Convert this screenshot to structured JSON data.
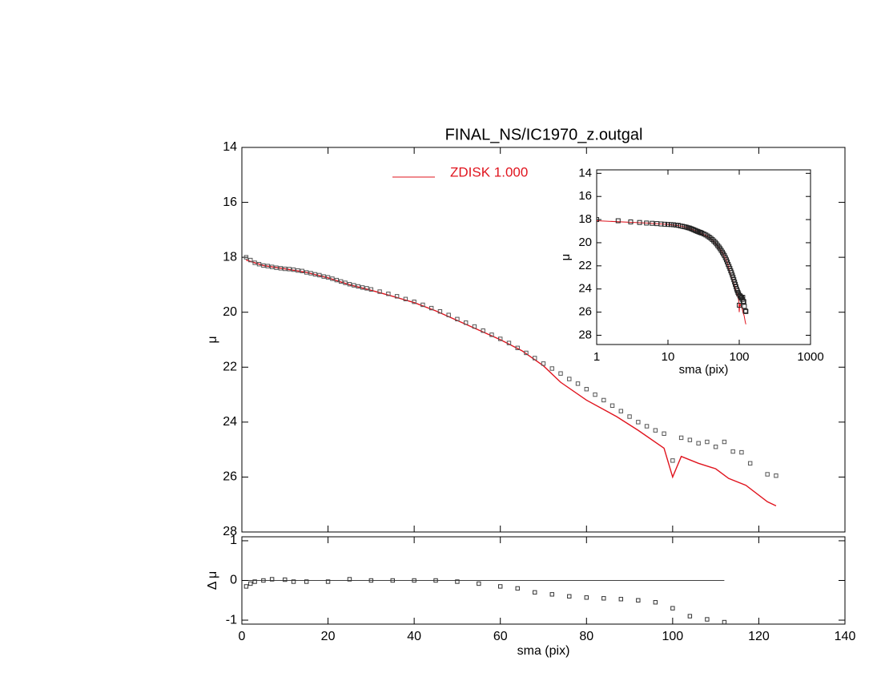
{
  "chart_data": [
    {
      "type": "line",
      "title": "FINAL_NS/IC1970_z.outgal",
      "ylabel": "μ",
      "xlim": [
        0,
        140
      ],
      "xticks": [
        0,
        20,
        40,
        60,
        80,
        100,
        120,
        140
      ],
      "ylim": [
        28,
        14
      ],
      "yticks": [
        14,
        16,
        18,
        20,
        22,
        24,
        26,
        28
      ],
      "series": [
        {
          "name": "ZDISK  1.000",
          "color": "#e0141e",
          "mode": "line",
          "x": [
            1,
            5,
            10,
            15,
            20,
            25,
            30,
            35,
            40,
            45,
            50,
            55,
            60,
            65,
            70,
            74,
            80,
            87,
            92,
            98,
            100,
            102,
            106,
            110,
            113,
            117,
            122,
            124
          ],
          "values": [
            18.1,
            18.3,
            18.42,
            18.55,
            18.75,
            19.0,
            19.2,
            19.42,
            19.65,
            19.95,
            20.3,
            20.65,
            21.0,
            21.4,
            21.95,
            22.55,
            23.2,
            23.8,
            24.3,
            24.95,
            26.0,
            25.25,
            25.5,
            25.7,
            26.05,
            26.3,
            26.9,
            27.05
          ]
        },
        {
          "color": "#555555",
          "mode": "markers",
          "x": [
            1,
            2,
            3,
            4,
            5,
            6,
            7,
            8,
            9,
            10,
            11,
            12,
            13,
            14,
            15,
            16,
            17,
            18,
            19,
            20,
            21,
            22,
            23,
            24,
            25,
            26,
            27,
            28,
            29,
            30,
            32,
            34,
            36,
            38,
            40,
            42,
            44,
            46,
            48,
            50,
            52,
            54,
            56,
            58,
            60,
            62,
            64,
            66,
            68,
            70,
            72,
            74,
            76,
            78,
            80,
            82,
            84,
            86,
            88,
            90,
            92,
            94,
            96,
            98,
            100,
            102,
            104,
            106,
            108,
            110,
            112,
            114,
            116,
            118,
            122,
            124
          ],
          "values": [
            18.0,
            18.1,
            18.2,
            18.25,
            18.3,
            18.32,
            18.35,
            18.38,
            18.4,
            18.42,
            18.43,
            18.45,
            18.48,
            18.5,
            18.55,
            18.58,
            18.62,
            18.65,
            18.7,
            18.73,
            18.78,
            18.83,
            18.88,
            18.93,
            18.98,
            19.02,
            19.06,
            19.1,
            19.13,
            19.17,
            19.25,
            19.33,
            19.42,
            19.52,
            19.62,
            19.73,
            19.85,
            19.97,
            20.1,
            20.25,
            20.38,
            20.52,
            20.67,
            20.82,
            20.97,
            21.12,
            21.3,
            21.48,
            21.67,
            21.87,
            22.05,
            22.23,
            22.43,
            22.6,
            22.8,
            23.0,
            23.2,
            23.4,
            23.6,
            23.8,
            24.0,
            24.15,
            24.3,
            24.42,
            25.4,
            24.57,
            24.65,
            24.77,
            24.72,
            24.9,
            24.72,
            25.07,
            25.1,
            25.5,
            25.9,
            25.95
          ]
        }
      ]
    },
    {
      "type": "scatter",
      "xlabel": "sma (pix)",
      "ylabel": "Δ μ",
      "xlim": [
        0,
        140
      ],
      "xticks": [
        0,
        20,
        40,
        60,
        80,
        100,
        120,
        140
      ],
      "ylim": [
        -1.1,
        1.1
      ],
      "yticks": [
        -1,
        0,
        1
      ],
      "series": [
        {
          "color": "#333333",
          "mode": "markers",
          "x": [
            1,
            2,
            3,
            5,
            7,
            10,
            12,
            15,
            20,
            25,
            30,
            35,
            40,
            45,
            50,
            55,
            60,
            64,
            68,
            72,
            76,
            80,
            84,
            88,
            92,
            96,
            100,
            104,
            108,
            112
          ],
          "values": [
            -0.15,
            -0.08,
            -0.03,
            0.0,
            0.03,
            0.02,
            -0.03,
            -0.03,
            -0.03,
            0.03,
            0.0,
            0.0,
            0.0,
            0.0,
            -0.03,
            -0.08,
            -0.15,
            -0.2,
            -0.3,
            -0.35,
            -0.4,
            -0.43,
            -0.45,
            -0.47,
            -0.5,
            -0.55,
            -0.7,
            -0.9,
            -0.98,
            -1.05
          ]
        }
      ]
    },
    {
      "type": "line",
      "xlabel": "sma (pix)",
      "ylabel": "μ",
      "xlog": true,
      "xlim": [
        1,
        1000
      ],
      "xticks": [
        1,
        10,
        100,
        1000
      ],
      "ylim": [
        28.8,
        13.7
      ],
      "yticks": [
        14,
        16,
        18,
        20,
        22,
        24,
        26,
        28
      ]
    }
  ]
}
